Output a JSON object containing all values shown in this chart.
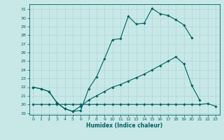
{
  "xlabel": "Humidex (Indice chaleur)",
  "bg_color": "#c8e8e8",
  "grid_color": "#afd4d4",
  "line_color": "#006060",
  "xlim": [
    -0.5,
    23.5
  ],
  "ylim": [
    18.8,
    31.6
  ],
  "xticks": [
    0,
    1,
    2,
    3,
    4,
    5,
    6,
    7,
    8,
    9,
    10,
    11,
    12,
    13,
    14,
    15,
    16,
    17,
    18,
    19,
    20,
    21,
    22,
    23
  ],
  "yticks": [
    19,
    20,
    21,
    22,
    23,
    24,
    25,
    26,
    27,
    28,
    29,
    30,
    31
  ],
  "curve1_x": [
    0,
    1,
    2,
    3,
    4,
    5,
    6,
    7,
    8,
    9,
    10,
    11,
    12,
    13,
    14,
    15,
    16,
    17,
    18,
    19,
    20
  ],
  "curve1_y": [
    22.0,
    21.8,
    21.5,
    20.2,
    19.5,
    19.2,
    19.3,
    21.8,
    23.2,
    25.3,
    27.5,
    27.6,
    30.2,
    29.3,
    29.4,
    31.1,
    30.5,
    30.3,
    29.8,
    29.2,
    27.7
  ],
  "curve2_x": [
    0,
    1,
    2,
    3,
    4,
    5,
    6,
    7,
    8,
    9,
    10,
    11,
    12,
    13,
    14,
    15,
    16,
    17,
    18,
    19,
    20,
    21
  ],
  "curve2_y": [
    22.0,
    21.8,
    21.5,
    20.2,
    19.5,
    19.2,
    19.8,
    20.5,
    21.0,
    21.5,
    22.0,
    22.3,
    22.7,
    23.1,
    23.5,
    24.0,
    24.5,
    25.0,
    25.5,
    24.7,
    22.2,
    20.5
  ],
  "curve3_x": [
    0,
    1,
    2,
    3,
    4,
    5,
    6,
    7,
    8,
    9,
    10,
    11,
    12,
    13,
    14,
    15,
    16,
    17,
    18,
    19,
    20,
    21,
    22,
    23
  ],
  "curve3_y": [
    20.0,
    20.0,
    20.0,
    20.0,
    20.0,
    20.0,
    20.0,
    20.0,
    20.0,
    20.0,
    20.0,
    20.0,
    20.0,
    20.0,
    20.0,
    20.0,
    20.0,
    20.0,
    20.0,
    20.0,
    20.0,
    20.0,
    20.1,
    19.8
  ]
}
